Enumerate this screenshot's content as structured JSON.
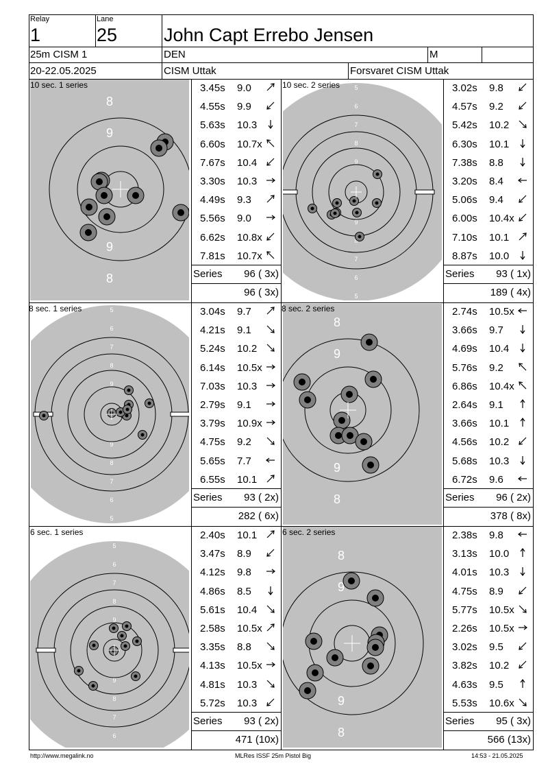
{
  "header": {
    "relay_label": "Relay",
    "relay": "1",
    "lane_label": "Lane",
    "lane": "25",
    "name": "John Capt Errebo Jensen",
    "event": "25m CISM 1",
    "nation": "DEN",
    "gender": "M",
    "date": "20-22.05.2025",
    "competition": "CISM Uttak",
    "club": "Forsvaret CISM Uttak"
  },
  "series_label": "Series",
  "blocks": [
    {
      "left": {
        "title": "10 sec. 1 series",
        "numbers": "big",
        "shots": [
          {
            "t": "3.45s",
            "s": "9.0",
            "dir": "ne"
          },
          {
            "t": "4.55s",
            "s": "9.9",
            "dir": "sw"
          },
          {
            "t": "5.63s",
            "s": "10.3",
            "dir": "s"
          },
          {
            "t": "6.60s",
            "s": "10.7x",
            "dir": "nw"
          },
          {
            "t": "7.67s",
            "s": "10.4",
            "dir": "sw"
          },
          {
            "t": "3.30s",
            "s": "10.3",
            "dir": "e"
          },
          {
            "t": "4.49s",
            "s": "9.3",
            "dir": "ne"
          },
          {
            "t": "5.56s",
            "s": "9.0",
            "dir": "e"
          },
          {
            "t": "6.62s",
            "s": "10.8x",
            "dir": "sw"
          },
          {
            "t": "7.81s",
            "s": "10.7x",
            "dir": "nw"
          }
        ],
        "series": "96 ( 3x)",
        "total": "96 ( 3x)"
      },
      "right": {
        "title": "10 sec. 2 series",
        "numbers": "small",
        "shots": [
          {
            "t": "3.02s",
            "s": "9.8",
            "dir": "sw"
          },
          {
            "t": "4.57s",
            "s": "9.2",
            "dir": "sw"
          },
          {
            "t": "5.42s",
            "s": "10.2",
            "dir": "se"
          },
          {
            "t": "6.30s",
            "s": "10.1",
            "dir": "s"
          },
          {
            "t": "7.38s",
            "s": "8.8",
            "dir": "s"
          },
          {
            "t": "3.20s",
            "s": "8.4",
            "dir": "w"
          },
          {
            "t": "5.06s",
            "s": "9.4",
            "dir": "sw"
          },
          {
            "t": "6.00s",
            "s": "10.4x",
            "dir": "sw"
          },
          {
            "t": "7.10s",
            "s": "10.1",
            "dir": "ne"
          },
          {
            "t": "8.87s",
            "s": "10.0",
            "dir": "s"
          }
        ],
        "series": "93 ( 1x)",
        "total": "189 ( 4x)"
      }
    },
    {
      "left": {
        "title": "8 sec. 1 series",
        "numbers": "small",
        "shots": [
          {
            "t": "3.04s",
            "s": "9.7",
            "dir": "ne"
          },
          {
            "t": "4.21s",
            "s": "9.1",
            "dir": "se"
          },
          {
            "t": "5.24s",
            "s": "10.2",
            "dir": "se"
          },
          {
            "t": "6.14s",
            "s": "10.5x",
            "dir": "e"
          },
          {
            "t": "7.03s",
            "s": "10.3",
            "dir": "e"
          },
          {
            "t": "2.79s",
            "s": "9.1",
            "dir": "e"
          },
          {
            "t": "3.79s",
            "s": "10.9x",
            "dir": "e"
          },
          {
            "t": "4.75s",
            "s": "9.2",
            "dir": "se"
          },
          {
            "t": "5.65s",
            "s": "7.7",
            "dir": "w"
          },
          {
            "t": "6.55s",
            "s": "10.1",
            "dir": "ne"
          }
        ],
        "series": "93 ( 2x)",
        "total": "282 ( 6x)"
      },
      "right": {
        "title": "8 sec. 2 series",
        "numbers": "big",
        "shots": [
          {
            "t": "2.74s",
            "s": "10.5x",
            "dir": "w"
          },
          {
            "t": "3.66s",
            "s": "9.7",
            "dir": "s"
          },
          {
            "t": "4.69s",
            "s": "10.4",
            "dir": "s"
          },
          {
            "t": "5.76s",
            "s": "9.2",
            "dir": "nw"
          },
          {
            "t": "6.86s",
            "s": "10.4x",
            "dir": "nw"
          },
          {
            "t": "2.64s",
            "s": "9.1",
            "dir": "n"
          },
          {
            "t": "3.66s",
            "s": "10.1",
            "dir": "n"
          },
          {
            "t": "4.56s",
            "s": "10.2",
            "dir": "sw"
          },
          {
            "t": "5.68s",
            "s": "10.3",
            "dir": "s"
          },
          {
            "t": "6.72s",
            "s": "9.6",
            "dir": "w"
          }
        ],
        "series": "96 ( 2x)",
        "total": "378 ( 8x)"
      }
    },
    {
      "left": {
        "title": "6 sec. 1 series",
        "numbers": "small",
        "shots": [
          {
            "t": "2.40s",
            "s": "10.1",
            "dir": "ne"
          },
          {
            "t": "3.47s",
            "s": "8.9",
            "dir": "sw"
          },
          {
            "t": "4.12s",
            "s": "9.8",
            "dir": "e"
          },
          {
            "t": "4.86s",
            "s": "8.5",
            "dir": "s"
          },
          {
            "t": "5.61s",
            "s": "10.4",
            "dir": "se"
          },
          {
            "t": "2.58s",
            "s": "10.5x",
            "dir": "ne"
          },
          {
            "t": "3.35s",
            "s": "8.8",
            "dir": "se"
          },
          {
            "t": "4.13s",
            "s": "10.5x",
            "dir": "e"
          },
          {
            "t": "4.81s",
            "s": "10.3",
            "dir": "se"
          },
          {
            "t": "5.72s",
            "s": "10.3",
            "dir": "sw"
          }
        ],
        "series": "93 ( 2x)",
        "total": "471 (10x)"
      },
      "right": {
        "title": "6 sec. 2 series",
        "numbers": "big",
        "shots": [
          {
            "t": "2.38s",
            "s": "9.8",
            "dir": "w"
          },
          {
            "t": "3.13s",
            "s": "10.0",
            "dir": "n"
          },
          {
            "t": "4.01s",
            "s": "10.3",
            "dir": "s"
          },
          {
            "t": "4.75s",
            "s": "8.9",
            "dir": "sw"
          },
          {
            "t": "5.77s",
            "s": "10.5x",
            "dir": "se"
          },
          {
            "t": "2.26s",
            "s": "10.5x",
            "dir": "e"
          },
          {
            "t": "3.02s",
            "s": "9.5",
            "dir": "sw"
          },
          {
            "t": "3.82s",
            "s": "10.2",
            "dir": "sw"
          },
          {
            "t": "4.63s",
            "s": "9.5",
            "dir": "n"
          },
          {
            "t": "5.53s",
            "s": "10.6x",
            "dir": "se"
          }
        ],
        "series": "95 ( 3x)",
        "total": "566 (13x)"
      }
    }
  ],
  "footer": {
    "url": "http://www.megalink.no",
    "software": "MLRes ISSF 25m Pistol Big",
    "timestamp": "14:53 - 21.05.2025"
  },
  "colors": {
    "target_gray": "#c0c0c0",
    "hole": "#808080"
  }
}
